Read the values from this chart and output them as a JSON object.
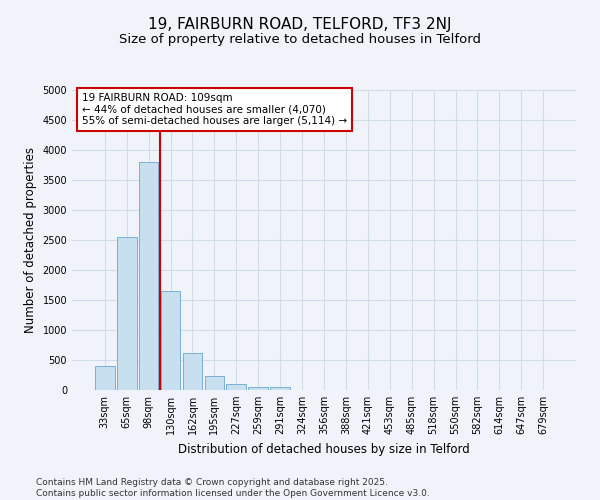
{
  "title": "19, FAIRBURN ROAD, TELFORD, TF3 2NJ",
  "subtitle": "Size of property relative to detached houses in Telford",
  "xlabel": "Distribution of detached houses by size in Telford",
  "ylabel": "Number of detached properties",
  "categories": [
    "33sqm",
    "65sqm",
    "98sqm",
    "130sqm",
    "162sqm",
    "195sqm",
    "227sqm",
    "259sqm",
    "291sqm",
    "324sqm",
    "356sqm",
    "388sqm",
    "421sqm",
    "453sqm",
    "485sqm",
    "518sqm",
    "550sqm",
    "582sqm",
    "614sqm",
    "647sqm",
    "679sqm"
  ],
  "values": [
    400,
    2550,
    3800,
    1650,
    620,
    240,
    100,
    50,
    50,
    0,
    0,
    0,
    0,
    0,
    0,
    0,
    0,
    0,
    0,
    0,
    0
  ],
  "bar_color": "#c8dff0",
  "bar_edge_color": "#7ab0d4",
  "background_color": "#f0f4fa",
  "grid_color": "#d0dce8",
  "vline_color": "#cc0000",
  "vline_x": 2.5,
  "ylim": [
    0,
    5000
  ],
  "yticks": [
    0,
    500,
    1000,
    1500,
    2000,
    2500,
    3000,
    3500,
    4000,
    4500,
    5000
  ],
  "annotation_text": "19 FAIRBURN ROAD: 109sqm\n← 44% of detached houses are smaller (4,070)\n55% of semi-detached houses are larger (5,114) →",
  "footer_text": "Contains HM Land Registry data © Crown copyright and database right 2025.\nContains public sector information licensed under the Open Government Licence v3.0.",
  "title_fontsize": 11,
  "subtitle_fontsize": 9.5,
  "tick_fontsize": 7,
  "ylabel_fontsize": 8.5,
  "xlabel_fontsize": 8.5,
  "annotation_fontsize": 7.5,
  "footer_fontsize": 6.5
}
